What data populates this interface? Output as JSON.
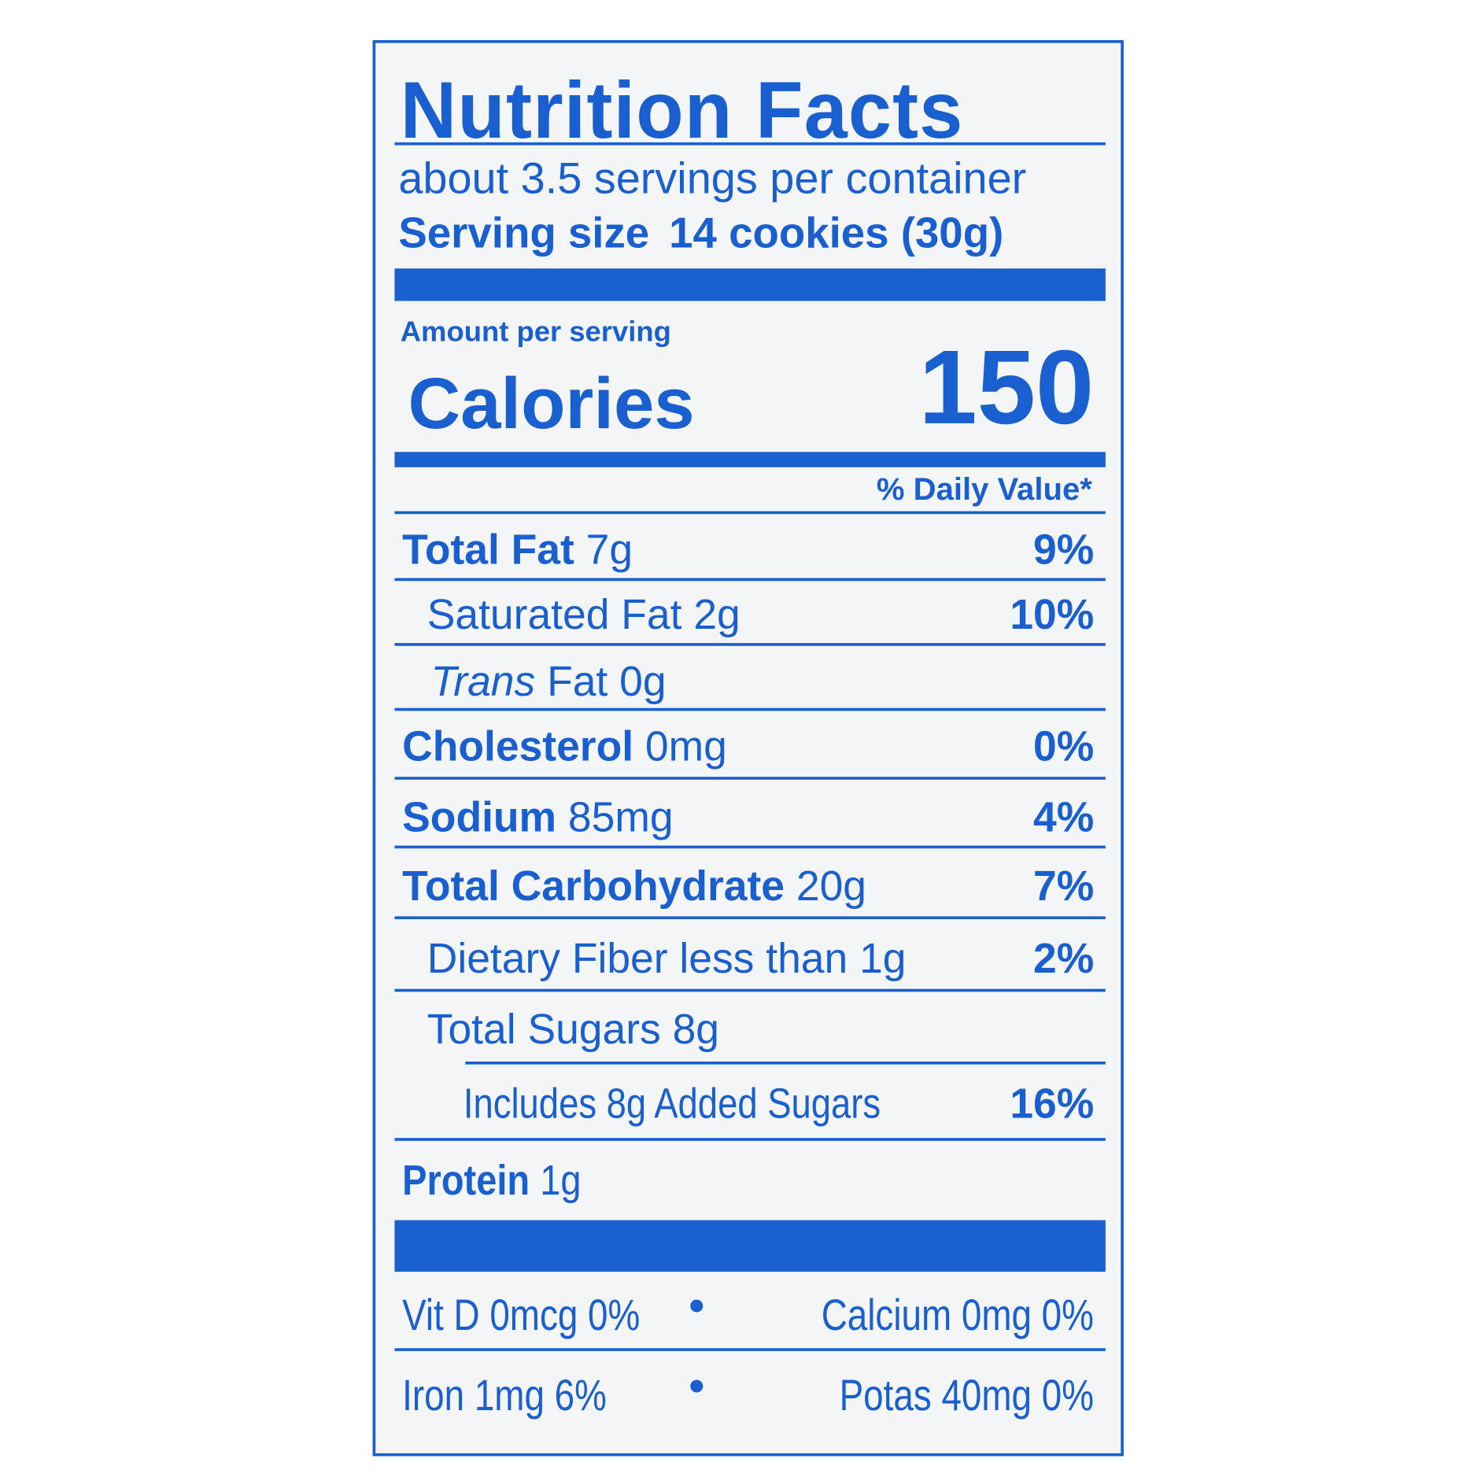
{
  "label": {
    "title": "Nutrition Facts",
    "servings_per_container": "about 3.5 servings per container",
    "serving_size_label": "Serving size",
    "serving_size_value": "14 cookies (30g)",
    "amount_per_serving": "Amount per serving",
    "calories_label": "Calories",
    "calories_value": "150",
    "daily_value_header": "% Daily Value*",
    "nutrients": [
      {
        "name": "Total Fat",
        "amount": "7g",
        "dv": "9%"
      },
      {
        "name": "Saturated Fat",
        "amount": "2g",
        "dv": "10%"
      },
      {
        "name": "Trans",
        "name_suffix": "Fat",
        "amount": "0g",
        "dv": ""
      },
      {
        "name": "Cholesterol",
        "amount": "0mg",
        "dv": "0%"
      },
      {
        "name": "Sodium",
        "amount": "85mg",
        "dv": "4%"
      },
      {
        "name": "Total Carbohydrate",
        "amount": "20g",
        "dv": "7%"
      },
      {
        "name": "Dietary Fiber",
        "amount": "less than 1g",
        "dv": "2%"
      },
      {
        "name": "Total Sugars",
        "amount": "8g",
        "dv": ""
      },
      {
        "name": "Includes 8g Added Sugars",
        "amount": "",
        "dv": "16%"
      },
      {
        "name": "Protein",
        "amount": "1g",
        "dv": ""
      }
    ],
    "vitamins": [
      {
        "left": "Vit D 0mcg 0%",
        "right": "Calcium 0mg 0%"
      },
      {
        "left": "Iron 1mg 6%",
        "right": "Potas 40mg 0%"
      }
    ],
    "separator": "•",
    "colors": {
      "ink": "#1a5fd0",
      "background": "#f3f5f7"
    }
  }
}
